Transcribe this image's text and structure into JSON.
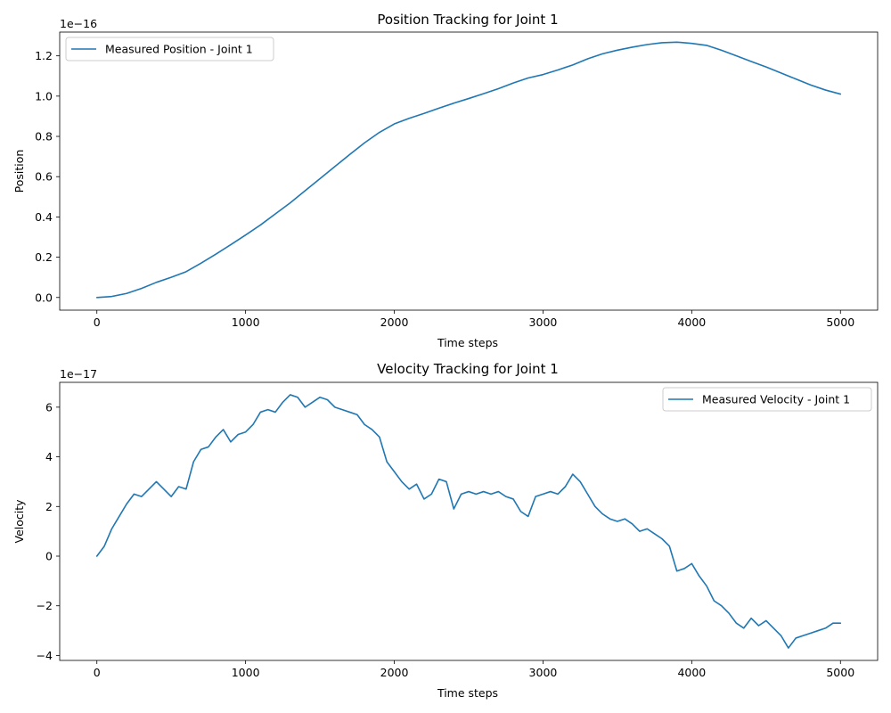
{
  "chart_data": [
    {
      "type": "line",
      "title": "Position Tracking for Joint 1",
      "xlabel": "Time steps",
      "ylabel": "Position",
      "offset_text": "1e−16",
      "xlim": [
        -250,
        5250
      ],
      "ylim": [
        -0.063,
        1.318
      ],
      "xticks": [
        0,
        1000,
        2000,
        3000,
        4000,
        5000
      ],
      "xtick_labels": [
        "0",
        "1000",
        "2000",
        "3000",
        "4000",
        "5000"
      ],
      "yticks": [
        0.0,
        0.2,
        0.4,
        0.6,
        0.8,
        1.0,
        1.2
      ],
      "ytick_labels": [
        "0.0",
        "0.2",
        "0.4",
        "0.6",
        "0.8",
        "1.0",
        "1.2"
      ],
      "grid": false,
      "legend_position": "upper-left",
      "series": [
        {
          "name": "Measured Position - Joint 1",
          "color": "#1f77b4",
          "x": [
            0,
            100,
            200,
            300,
            400,
            500,
            600,
            700,
            800,
            900,
            1000,
            1100,
            1200,
            1300,
            1400,
            1500,
            1600,
            1700,
            1800,
            1900,
            2000,
            2100,
            2200,
            2300,
            2400,
            2500,
            2600,
            2700,
            2800,
            2900,
            3000,
            3100,
            3200,
            3300,
            3400,
            3500,
            3600,
            3700,
            3800,
            3900,
            4000,
            4100,
            4200,
            4300,
            4400,
            4500,
            4600,
            4700,
            4800,
            4900,
            5000
          ],
          "y": [
            0.0,
            0.005,
            0.02,
            0.045,
            0.075,
            0.1,
            0.128,
            0.17,
            0.215,
            0.262,
            0.31,
            0.36,
            0.415,
            0.47,
            0.53,
            0.59,
            0.65,
            0.71,
            0.768,
            0.82,
            0.862,
            0.89,
            0.914,
            0.94,
            0.965,
            0.988,
            1.012,
            1.037,
            1.065,
            1.09,
            1.107,
            1.13,
            1.155,
            1.185,
            1.21,
            1.228,
            1.243,
            1.256,
            1.265,
            1.268,
            1.262,
            1.252,
            1.228,
            1.2,
            1.172,
            1.145,
            1.115,
            1.085,
            1.055,
            1.03,
            1.01
          ]
        }
      ]
    },
    {
      "type": "line",
      "title": "Velocity Tracking for Joint 1",
      "xlabel": "Time steps",
      "ylabel": "Velocity",
      "offset_text": "1e−17",
      "xlim": [
        -250,
        5250
      ],
      "ylim": [
        -4.2,
        7.0
      ],
      "xticks": [
        0,
        1000,
        2000,
        3000,
        4000,
        5000
      ],
      "xtick_labels": [
        "0",
        "1000",
        "2000",
        "3000",
        "4000",
        "5000"
      ],
      "yticks": [
        -4,
        -2,
        0,
        2,
        4,
        6
      ],
      "ytick_labels": [
        "−4",
        "−2",
        "0",
        "2",
        "4",
        "6"
      ],
      "grid": false,
      "legend_position": "upper-right",
      "series": [
        {
          "name": "Measured Velocity - Joint 1",
          "color": "#1f77b4",
          "x": [
            0,
            50,
            100,
            150,
            200,
            250,
            300,
            350,
            400,
            450,
            500,
            550,
            600,
            650,
            700,
            750,
            800,
            850,
            900,
            950,
            1000,
            1050,
            1100,
            1150,
            1200,
            1250,
            1300,
            1350,
            1400,
            1450,
            1500,
            1550,
            1600,
            1650,
            1700,
            1750,
            1800,
            1850,
            1900,
            1950,
            2000,
            2050,
            2100,
            2150,
            2200,
            2250,
            2300,
            2350,
            2400,
            2450,
            2500,
            2550,
            2600,
            2650,
            2700,
            2750,
            2800,
            2850,
            2900,
            2950,
            3000,
            3050,
            3100,
            3150,
            3200,
            3250,
            3300,
            3350,
            3400,
            3450,
            3500,
            3550,
            3600,
            3650,
            3700,
            3750,
            3800,
            3850,
            3900,
            3950,
            4000,
            4050,
            4100,
            4150,
            4200,
            4250,
            4300,
            4350,
            4400,
            4450,
            4500,
            4550,
            4600,
            4650,
            4700,
            4750,
            4800,
            4850,
            4900,
            4950,
            5000
          ],
          "y": [
            0.0,
            0.4,
            1.1,
            1.6,
            2.1,
            2.5,
            2.4,
            2.7,
            3.0,
            2.7,
            2.4,
            2.8,
            2.7,
            3.8,
            4.3,
            4.4,
            4.8,
            5.1,
            4.6,
            4.9,
            5.0,
            5.3,
            5.8,
            5.9,
            5.8,
            6.2,
            6.5,
            6.4,
            6.0,
            6.2,
            6.4,
            6.3,
            6.0,
            5.9,
            5.8,
            5.7,
            5.3,
            5.1,
            4.8,
            3.8,
            3.4,
            3.0,
            2.7,
            2.9,
            2.3,
            2.5,
            3.1,
            3.0,
            1.9,
            2.5,
            2.6,
            2.5,
            2.6,
            2.5,
            2.6,
            2.4,
            2.3,
            1.8,
            1.6,
            2.4,
            2.5,
            2.6,
            2.5,
            2.8,
            3.3,
            3.0,
            2.5,
            2.0,
            1.7,
            1.5,
            1.4,
            1.5,
            1.3,
            1.0,
            1.1,
            0.9,
            0.7,
            0.4,
            -0.6,
            -0.5,
            -0.3,
            -0.8,
            -1.2,
            -1.8,
            -2.0,
            -2.3,
            -2.7,
            -2.9,
            -2.5,
            -2.8,
            -2.6,
            -2.9,
            -3.2,
            -3.7,
            -3.3,
            -3.2,
            -3.1,
            -3.0,
            -2.9,
            -2.7,
            -2.7
          ]
        }
      ]
    }
  ]
}
